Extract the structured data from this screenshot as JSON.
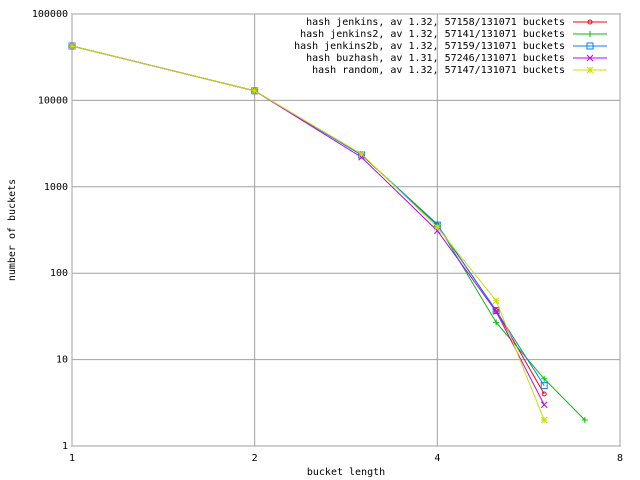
{
  "chart_data": {
    "type": "line",
    "xlabel": "bucket length",
    "ylabel": "number of buckets",
    "x": [
      1,
      2,
      3,
      4,
      5,
      6,
      7
    ],
    "xscale": "log",
    "yscale": "log",
    "xlim": [
      1,
      8
    ],
    "xticks": [
      1,
      2,
      4,
      8
    ],
    "ylim": [
      1,
      100000
    ],
    "yticks": [
      1,
      10,
      100,
      1000,
      10000,
      100000
    ],
    "grid": true,
    "legend": "top-right",
    "series": [
      {
        "name": "hash jenkins, av 1.32, 57158/131071 buckets",
        "color": "#ff0000",
        "marker": "circle",
        "values": [
          42600,
          12900,
          2340,
          360,
          37,
          4,
          null
        ]
      },
      {
        "name": "hash jenkins2, av 1.32, 57141/131071 buckets",
        "color": "#00c000",
        "marker": "plus",
        "values": [
          42600,
          12900,
          2340,
          370,
          27,
          6,
          2
        ]
      },
      {
        "name": "hash jenkins2b, av 1.32, 57159/131071 buckets",
        "color": "#0080ff",
        "marker": "square",
        "values": [
          42600,
          12900,
          2340,
          360,
          37,
          5,
          null
        ]
      },
      {
        "name": "hash buzhash, av 1.31, 57246/131071 buckets",
        "color": "#c000ff",
        "marker": "cross",
        "values": [
          42600,
          12900,
          2200,
          310,
          36,
          3,
          null
        ]
      },
      {
        "name": "hash random, av 1.32, 57147/131071 buckets",
        "color": "#c8e000",
        "marker": "star",
        "values": [
          42600,
          12900,
          2400,
          340,
          48,
          2,
          null
        ]
      }
    ]
  }
}
